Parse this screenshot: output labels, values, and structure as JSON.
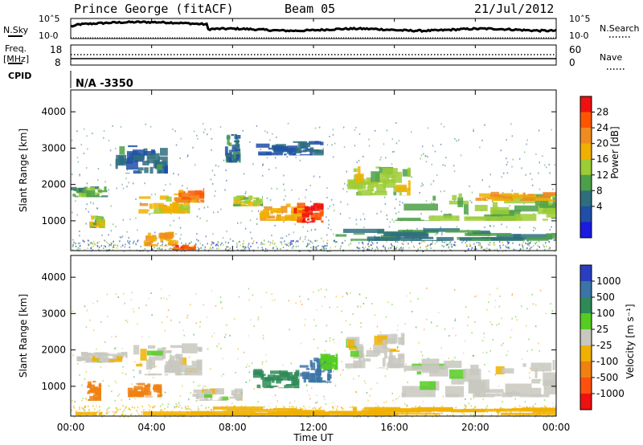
{
  "header": {
    "station": "Prince George (fitACF)",
    "beam": "Beam 05",
    "date": "21/Jul/2012"
  },
  "noise_panel": {
    "left_label": "N.Sky",
    "right_label": "N.Search",
    "left_ticks": [
      "10^5",
      "10^0"
    ],
    "right_ticks": [
      "10^5",
      "10^0"
    ],
    "left_ticks_display": [
      "10˄5",
      "10˗0"
    ]
  },
  "freq_panel": {
    "left_label_1": "Freq.",
    "left_label_2": "[MHz]",
    "right_label": "Nave",
    "left_ticks": [
      "18",
      "8"
    ],
    "right_ticks": [
      "60",
      "0"
    ]
  },
  "cpid": {
    "label": "CPID",
    "value": "N/A  -3350"
  },
  "x_axis": {
    "label": "Time UT",
    "ticks": [
      "00:00",
      "04:00",
      "08:00",
      "12:00",
      "16:00",
      "20:00",
      "00:00"
    ]
  },
  "power_panel": {
    "y_label": "Slant Range [km]",
    "y_ticks": [
      "4000",
      "3000",
      "2000",
      "1000"
    ],
    "colorbar_label": "Power [dB]",
    "colorbar_ticks": [
      "28",
      "24",
      "20",
      "16",
      "12",
      "8",
      "4"
    ],
    "colors": [
      "#ee1111",
      "#ff5500",
      "#f08b22",
      "#f0b000",
      "#9ccc36",
      "#4ca048",
      "#2e6e7e",
      "#1f4fa8",
      "#1a1ae0"
    ]
  },
  "velocity_panel": {
    "y_label": "Slant Range [km]",
    "y_ticks": [
      "4000",
      "3000",
      "2000",
      "1000"
    ],
    "colorbar_label": "Velocity [m s⁻¹]",
    "colorbar_ticks": [
      "1000",
      "500",
      "100",
      "25",
      "-25",
      "-100",
      "-500",
      "-1000"
    ],
    "colors": [
      "#2a3ec0",
      "#3b74a6",
      "#2e8b57",
      "#55cc22",
      "#c8c8c0",
      "#f0b000",
      "#f08010",
      "#ff5010",
      "#ee1111"
    ]
  },
  "chart_data": {
    "type": "heatmap",
    "x_range_hours": [
      0,
      24
    ],
    "y_range_km": [
      180,
      4600
    ],
    "power_regions": [
      {
        "t0": 0.0,
        "t1": 1.9,
        "r0": 1650,
        "r1": 1950,
        "power": 10
      },
      {
        "t0": 0.9,
        "t1": 1.7,
        "r0": 800,
        "r1": 1150,
        "power": 14
      },
      {
        "t0": 2.2,
        "t1": 4.8,
        "r0": 2300,
        "r1": 3100,
        "power": 6
      },
      {
        "t0": 3.3,
        "t1": 5.9,
        "r0": 1200,
        "r1": 1700,
        "power": 18
      },
      {
        "t0": 5.0,
        "t1": 6.6,
        "r0": 1500,
        "r1": 1900,
        "power": 22
      },
      {
        "t0": 3.6,
        "t1": 5.3,
        "r0": 300,
        "r1": 700,
        "power": 20
      },
      {
        "t0": 5.0,
        "t1": 6.2,
        "r0": 200,
        "r1": 350,
        "power": 26
      },
      {
        "t0": 7.6,
        "t1": 8.4,
        "r0": 2600,
        "r1": 3400,
        "power": 6
      },
      {
        "t0": 8.0,
        "t1": 9.5,
        "r0": 1400,
        "r1": 1700,
        "power": 14
      },
      {
        "t0": 9.3,
        "t1": 11.7,
        "r0": 1000,
        "r1": 1500,
        "power": 20
      },
      {
        "t0": 11.0,
        "t1": 12.5,
        "r0": 950,
        "r1": 1500,
        "power": 28
      },
      {
        "t0": 9.0,
        "t1": 12.5,
        "r0": 2800,
        "r1": 3200,
        "power": 4
      },
      {
        "t0": 13.6,
        "t1": 16.8,
        "r0": 1700,
        "r1": 2500,
        "power": 14
      },
      {
        "t0": 16.0,
        "t1": 24.0,
        "r0": 1000,
        "r1": 1800,
        "power": 12
      },
      {
        "t0": 20.0,
        "t1": 24.0,
        "r0": 1550,
        "r1": 1800,
        "power": 20
      },
      {
        "t0": 13.0,
        "t1": 24.0,
        "r0": 450,
        "r1": 800,
        "power": 8
      }
    ],
    "velocity_regions": [
      {
        "t0": 0.0,
        "t1": 2.8,
        "r0": 1650,
        "r1": 1950,
        "velocity": 0
      },
      {
        "t0": 0.8,
        "t1": 1.5,
        "r0": 600,
        "r1": 1150,
        "velocity": -300
      },
      {
        "t0": 2.8,
        "t1": 4.5,
        "r0": 700,
        "r1": 1100,
        "velocity": -300
      },
      {
        "t0": 3.0,
        "t1": 6.5,
        "r0": 1300,
        "r1": 2200,
        "velocity": 0
      },
      {
        "t0": 6.0,
        "t1": 8.5,
        "r0": 600,
        "r1": 1000,
        "velocity": 0
      },
      {
        "t0": 9.0,
        "t1": 11.3,
        "r0": 950,
        "r1": 1500,
        "velocity": 300
      },
      {
        "t0": 11.3,
        "t1": 12.9,
        "r0": 1100,
        "r1": 1800,
        "velocity": 600
      },
      {
        "t0": 12.3,
        "t1": 13.2,
        "r0": 1450,
        "r1": 1900,
        "velocity": 60
      },
      {
        "t0": 13.5,
        "t1": 16.5,
        "r0": 1500,
        "r1": 2500,
        "velocity": 0
      },
      {
        "t0": 16.0,
        "t1": 24.0,
        "r0": 700,
        "r1": 1800,
        "velocity": 0
      },
      {
        "t0": 0.0,
        "t1": 24.0,
        "r0": 200,
        "r1": 450,
        "velocity": -60
      }
    ]
  }
}
